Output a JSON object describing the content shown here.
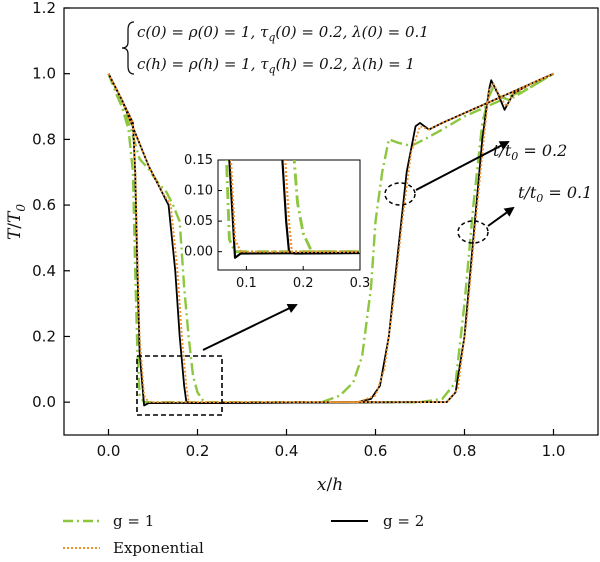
{
  "chart_data": {
    "type": "line",
    "xlabel_main": "x",
    "xlabel_sub": "h",
    "ylabel_main": "T",
    "ylabel_sub": "T",
    "ylabel_subscript": "0",
    "xlim": [
      -0.1,
      1.1
    ],
    "ylim": [
      -0.1,
      1.2
    ],
    "xticks": [
      "0.0",
      "0.2",
      "0.4",
      "0.6",
      "0.8",
      "1.0"
    ],
    "yticks": [
      "0.0",
      "0.2",
      "0.4",
      "0.6",
      "0.8",
      "1.0",
      "1.2"
    ],
    "grid": false,
    "legend_position": "bottom",
    "equations": {
      "line1": "c(0) = ρ(0) = 1, τ",
      "line1_sub": "q",
      "line1_rest": "(0) = 0.2, λ(0) = 0.1",
      "line2": "c(h) = ρ(h) = 1, τ",
      "line2_sub": "q",
      "line2_rest": "(h) = 0.2, λ(h) = 1"
    },
    "annotations": {
      "t02": "t/t",
      "t02_sub": "0",
      "t02_val": " = 0.2",
      "t01": "t/t",
      "t01_sub": "0",
      "t01_val": " = 0.1"
    },
    "inset": {
      "xlim": [
        0.05,
        0.3
      ],
      "ylim": [
        -0.03,
        0.15
      ],
      "xticks": [
        "0.1",
        "0.2",
        "0.3"
      ],
      "yticks": [
        "0.00",
        "0.05",
        "0.10",
        "0.15"
      ]
    },
    "series": [
      {
        "name": "g = 1",
        "color": "#8dc63f",
        "dash": "dashdot",
        "curves": [
          [
            [
              0,
              1.0
            ],
            [
              0.02,
              0.93
            ],
            [
              0.04,
              0.87
            ],
            [
              0.055,
              0.81
            ],
            [
              0.07,
              0.74
            ],
            [
              0.09,
              0.71
            ],
            [
              0.11,
              0.67
            ],
            [
              0.13,
              0.64
            ],
            [
              0.145,
              0.6
            ],
            [
              0.16,
              0.55
            ],
            [
              0.17,
              0.35
            ],
            [
              0.18,
              0.2
            ],
            [
              0.19,
              0.08
            ],
            [
              0.2,
              0.03
            ],
            [
              0.215,
              0.0
            ],
            [
              0.6,
              0.0
            ]
          ],
          [
            [
              0.48,
              0.0
            ],
            [
              0.52,
              0.02
            ],
            [
              0.55,
              0.06
            ],
            [
              0.57,
              0.14
            ],
            [
              0.59,
              0.35
            ],
            [
              0.6,
              0.55
            ],
            [
              0.615,
              0.7
            ],
            [
              0.63,
              0.8
            ],
            [
              0.65,
              0.79
            ],
            [
              0.68,
              0.78
            ],
            [
              0.71,
              0.8
            ],
            [
              0.75,
              0.83
            ],
            [
              0.8,
              0.87
            ],
            [
              0.85,
              0.9
            ],
            [
              0.9,
              0.93
            ],
            [
              0.95,
              0.96
            ],
            [
              1.0,
              1.0
            ]
          ],
          [
            [
              0,
              1.0
            ],
            [
              0.03,
              0.9
            ],
            [
              0.045,
              0.83
            ],
            [
              0.055,
              0.7
            ],
            [
              0.06,
              0.4
            ],
            [
              0.065,
              0.15
            ],
            [
              0.07,
              0.02
            ],
            [
              0.08,
              0.0
            ],
            [
              0.7,
              0.0
            ]
          ],
          [
            [
              0.7,
              0.0
            ],
            [
              0.75,
              0.01
            ],
            [
              0.78,
              0.06
            ],
            [
              0.8,
              0.3
            ],
            [
              0.82,
              0.6
            ],
            [
              0.84,
              0.85
            ],
            [
              0.855,
              0.93
            ],
            [
              0.865,
              0.96
            ],
            [
              0.88,
              0.93
            ],
            [
              0.9,
              0.92
            ],
            [
              0.95,
              0.96
            ],
            [
              1.0,
              1.0
            ]
          ]
        ]
      },
      {
        "name": "g = 2",
        "color": "#000000",
        "dash": "solid",
        "curves": [
          [
            [
              0,
              1.0
            ],
            [
              0.03,
              0.92
            ],
            [
              0.06,
              0.82
            ],
            [
              0.09,
              0.72
            ],
            [
              0.12,
              0.64
            ],
            [
              0.135,
              0.6
            ],
            [
              0.15,
              0.4
            ],
            [
              0.16,
              0.2
            ],
            [
              0.17,
              0.05
            ],
            [
              0.175,
              0.0
            ],
            [
              0.185,
              -0.003
            ],
            [
              0.6,
              0.0
            ]
          ],
          [
            [
              0.5,
              0.0
            ],
            [
              0.56,
              0.0
            ],
            [
              0.59,
              0.01
            ],
            [
              0.61,
              0.05
            ],
            [
              0.63,
              0.2
            ],
            [
              0.65,
              0.45
            ],
            [
              0.67,
              0.7
            ],
            [
              0.69,
              0.84
            ],
            [
              0.7,
              0.85
            ],
            [
              0.72,
              0.83
            ],
            [
              0.75,
              0.85
            ],
            [
              0.8,
              0.88
            ],
            [
              0.85,
              0.91
            ],
            [
              0.9,
              0.94
            ],
            [
              0.95,
              0.97
            ],
            [
              1.0,
              1.0
            ]
          ],
          [
            [
              0,
              1.0
            ],
            [
              0.03,
              0.92
            ],
            [
              0.055,
              0.85
            ],
            [
              0.06,
              0.7
            ],
            [
              0.065,
              0.4
            ],
            [
              0.07,
              0.15
            ],
            [
              0.08,
              -0.01
            ],
            [
              0.09,
              -0.003
            ],
            [
              0.7,
              0.0
            ]
          ],
          [
            [
              0.7,
              0.0
            ],
            [
              0.76,
              0.0
            ],
            [
              0.78,
              0.03
            ],
            [
              0.8,
              0.2
            ],
            [
              0.82,
              0.5
            ],
            [
              0.84,
              0.8
            ],
            [
              0.855,
              0.95
            ],
            [
              0.86,
              0.98
            ],
            [
              0.875,
              0.94
            ],
            [
              0.89,
              0.89
            ],
            [
              0.91,
              0.94
            ],
            [
              0.95,
              0.97
            ],
            [
              1.0,
              1.0
            ]
          ]
        ]
      },
      {
        "name": "Exponential",
        "color": "#f0902a",
        "dash": "dotted",
        "curves": [
          [
            [
              0,
              1.0
            ],
            [
              0.03,
              0.92
            ],
            [
              0.06,
              0.82
            ],
            [
              0.09,
              0.72
            ],
            [
              0.12,
              0.64
            ],
            [
              0.14,
              0.6
            ],
            [
              0.155,
              0.4
            ],
            [
              0.165,
              0.2
            ],
            [
              0.175,
              0.05
            ],
            [
              0.18,
              0.0
            ],
            [
              0.6,
              0.0
            ]
          ],
          [
            [
              0.5,
              0.0
            ],
            [
              0.56,
              0.0
            ],
            [
              0.6,
              0.02
            ],
            [
              0.62,
              0.1
            ],
            [
              0.64,
              0.3
            ],
            [
              0.66,
              0.55
            ],
            [
              0.68,
              0.76
            ],
            [
              0.7,
              0.84
            ],
            [
              0.72,
              0.83
            ],
            [
              0.75,
              0.85
            ],
            [
              0.8,
              0.88
            ],
            [
              0.85,
              0.91
            ],
            [
              0.9,
              0.94
            ],
            [
              0.95,
              0.97
            ],
            [
              1.0,
              1.0
            ]
          ],
          [
            [
              0,
              1.0
            ],
            [
              0.03,
              0.92
            ],
            [
              0.055,
              0.85
            ],
            [
              0.06,
              0.72
            ],
            [
              0.065,
              0.45
            ],
            [
              0.07,
              0.2
            ],
            [
              0.08,
              0.02
            ],
            [
              0.09,
              0.0
            ],
            [
              0.7,
              0.0
            ]
          ],
          [
            [
              0.7,
              0.0
            ],
            [
              0.76,
              0.0
            ],
            [
              0.785,
              0.04
            ],
            [
              0.805,
              0.25
            ],
            [
              0.825,
              0.55
            ],
            [
              0.845,
              0.82
            ],
            [
              0.855,
              0.95
            ],
            [
              0.865,
              0.97
            ],
            [
              0.88,
              0.93
            ],
            [
              0.895,
              0.9
            ],
            [
              0.91,
              0.94
            ],
            [
              0.95,
              0.97
            ],
            [
              1.0,
              1.0
            ]
          ]
        ]
      }
    ]
  },
  "legend": {
    "g1": "g = 1",
    "g2": "g = 2",
    "exp": "Exponential"
  }
}
